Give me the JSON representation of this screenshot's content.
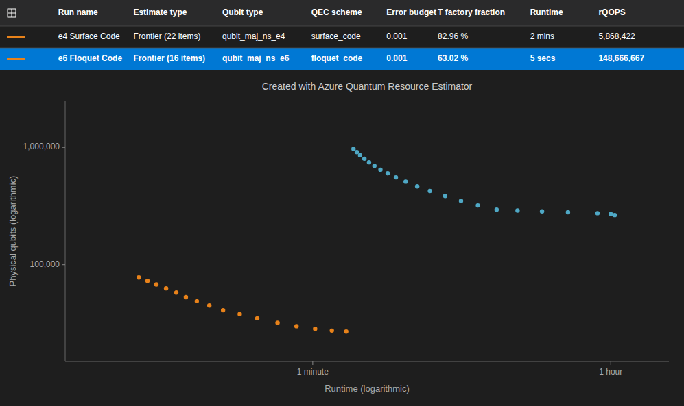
{
  "chart_data": {
    "type": "scatter",
    "title": "Created with Azure Quantum Resource Estimator",
    "x_label": "Runtime (logarithmic)",
    "y_label": "Physical qubits (logarithmic)",
    "log": true,
    "grid": false,
    "xlim": [
      2,
      8000
    ],
    "ylim": [
      15000,
      2500000
    ],
    "xticks": [
      {
        "value": 60,
        "label": "1 minute"
      },
      {
        "value": 3600,
        "label": "1 hour"
      }
    ],
    "yticks": [
      {
        "value": 100000,
        "label": "100,000"
      },
      {
        "value": 1000000,
        "label": "1,000,000"
      }
    ],
    "table": {
      "columns": [
        "Run name",
        "Estimate type",
        "Qubit type",
        "QEC scheme",
        "Error budget",
        "T factory fraction",
        "Runtime",
        "rQOPS"
      ],
      "rows": [
        [
          "e4 Surface Code",
          "Frontier (22 items)",
          "qubit_maj_ns_e4",
          "surface_code",
          "0.001",
          "82.96 %",
          "2 mins",
          "5,868,422"
        ],
        [
          "e6 Floquet Code",
          "Frontier (16 items)",
          "qubit_maj_ns_e6",
          "floquet_code",
          "0.001",
          "63.02 %",
          "5 secs",
          "148,666,667"
        ]
      ]
    },
    "series": [
      {
        "color": "#4fa8c5",
        "marker": "circle",
        "x": [
          105,
          110,
          115,
          122,
          130,
          140,
          152,
          168,
          188,
          215,
          252,
          300,
          370,
          460,
          580,
          750,
          1000,
          1400,
          2000,
          3000,
          3600,
          3800
        ],
        "values": [
          970000,
          910000,
          855000,
          800000,
          745000,
          695000,
          645000,
          600000,
          555000,
          510000,
          465000,
          425000,
          385000,
          350000,
          320000,
          295000,
          290000,
          285000,
          280000,
          275000,
          270000,
          265000
        ]
      },
      {
        "color": "#e8821a",
        "marker": "circle",
        "x": [
          5.5,
          6.2,
          7.0,
          8.0,
          9.2,
          10.5,
          12.2,
          14.5,
          17.5,
          22,
          28,
          37,
          48,
          62,
          78,
          95
        ],
        "values": [
          78000,
          73000,
          68000,
          63000,
          58000,
          53000,
          49000,
          45000,
          41000,
          38000,
          35000,
          32000,
          30000,
          28500,
          27500,
          27000
        ]
      }
    ]
  }
}
